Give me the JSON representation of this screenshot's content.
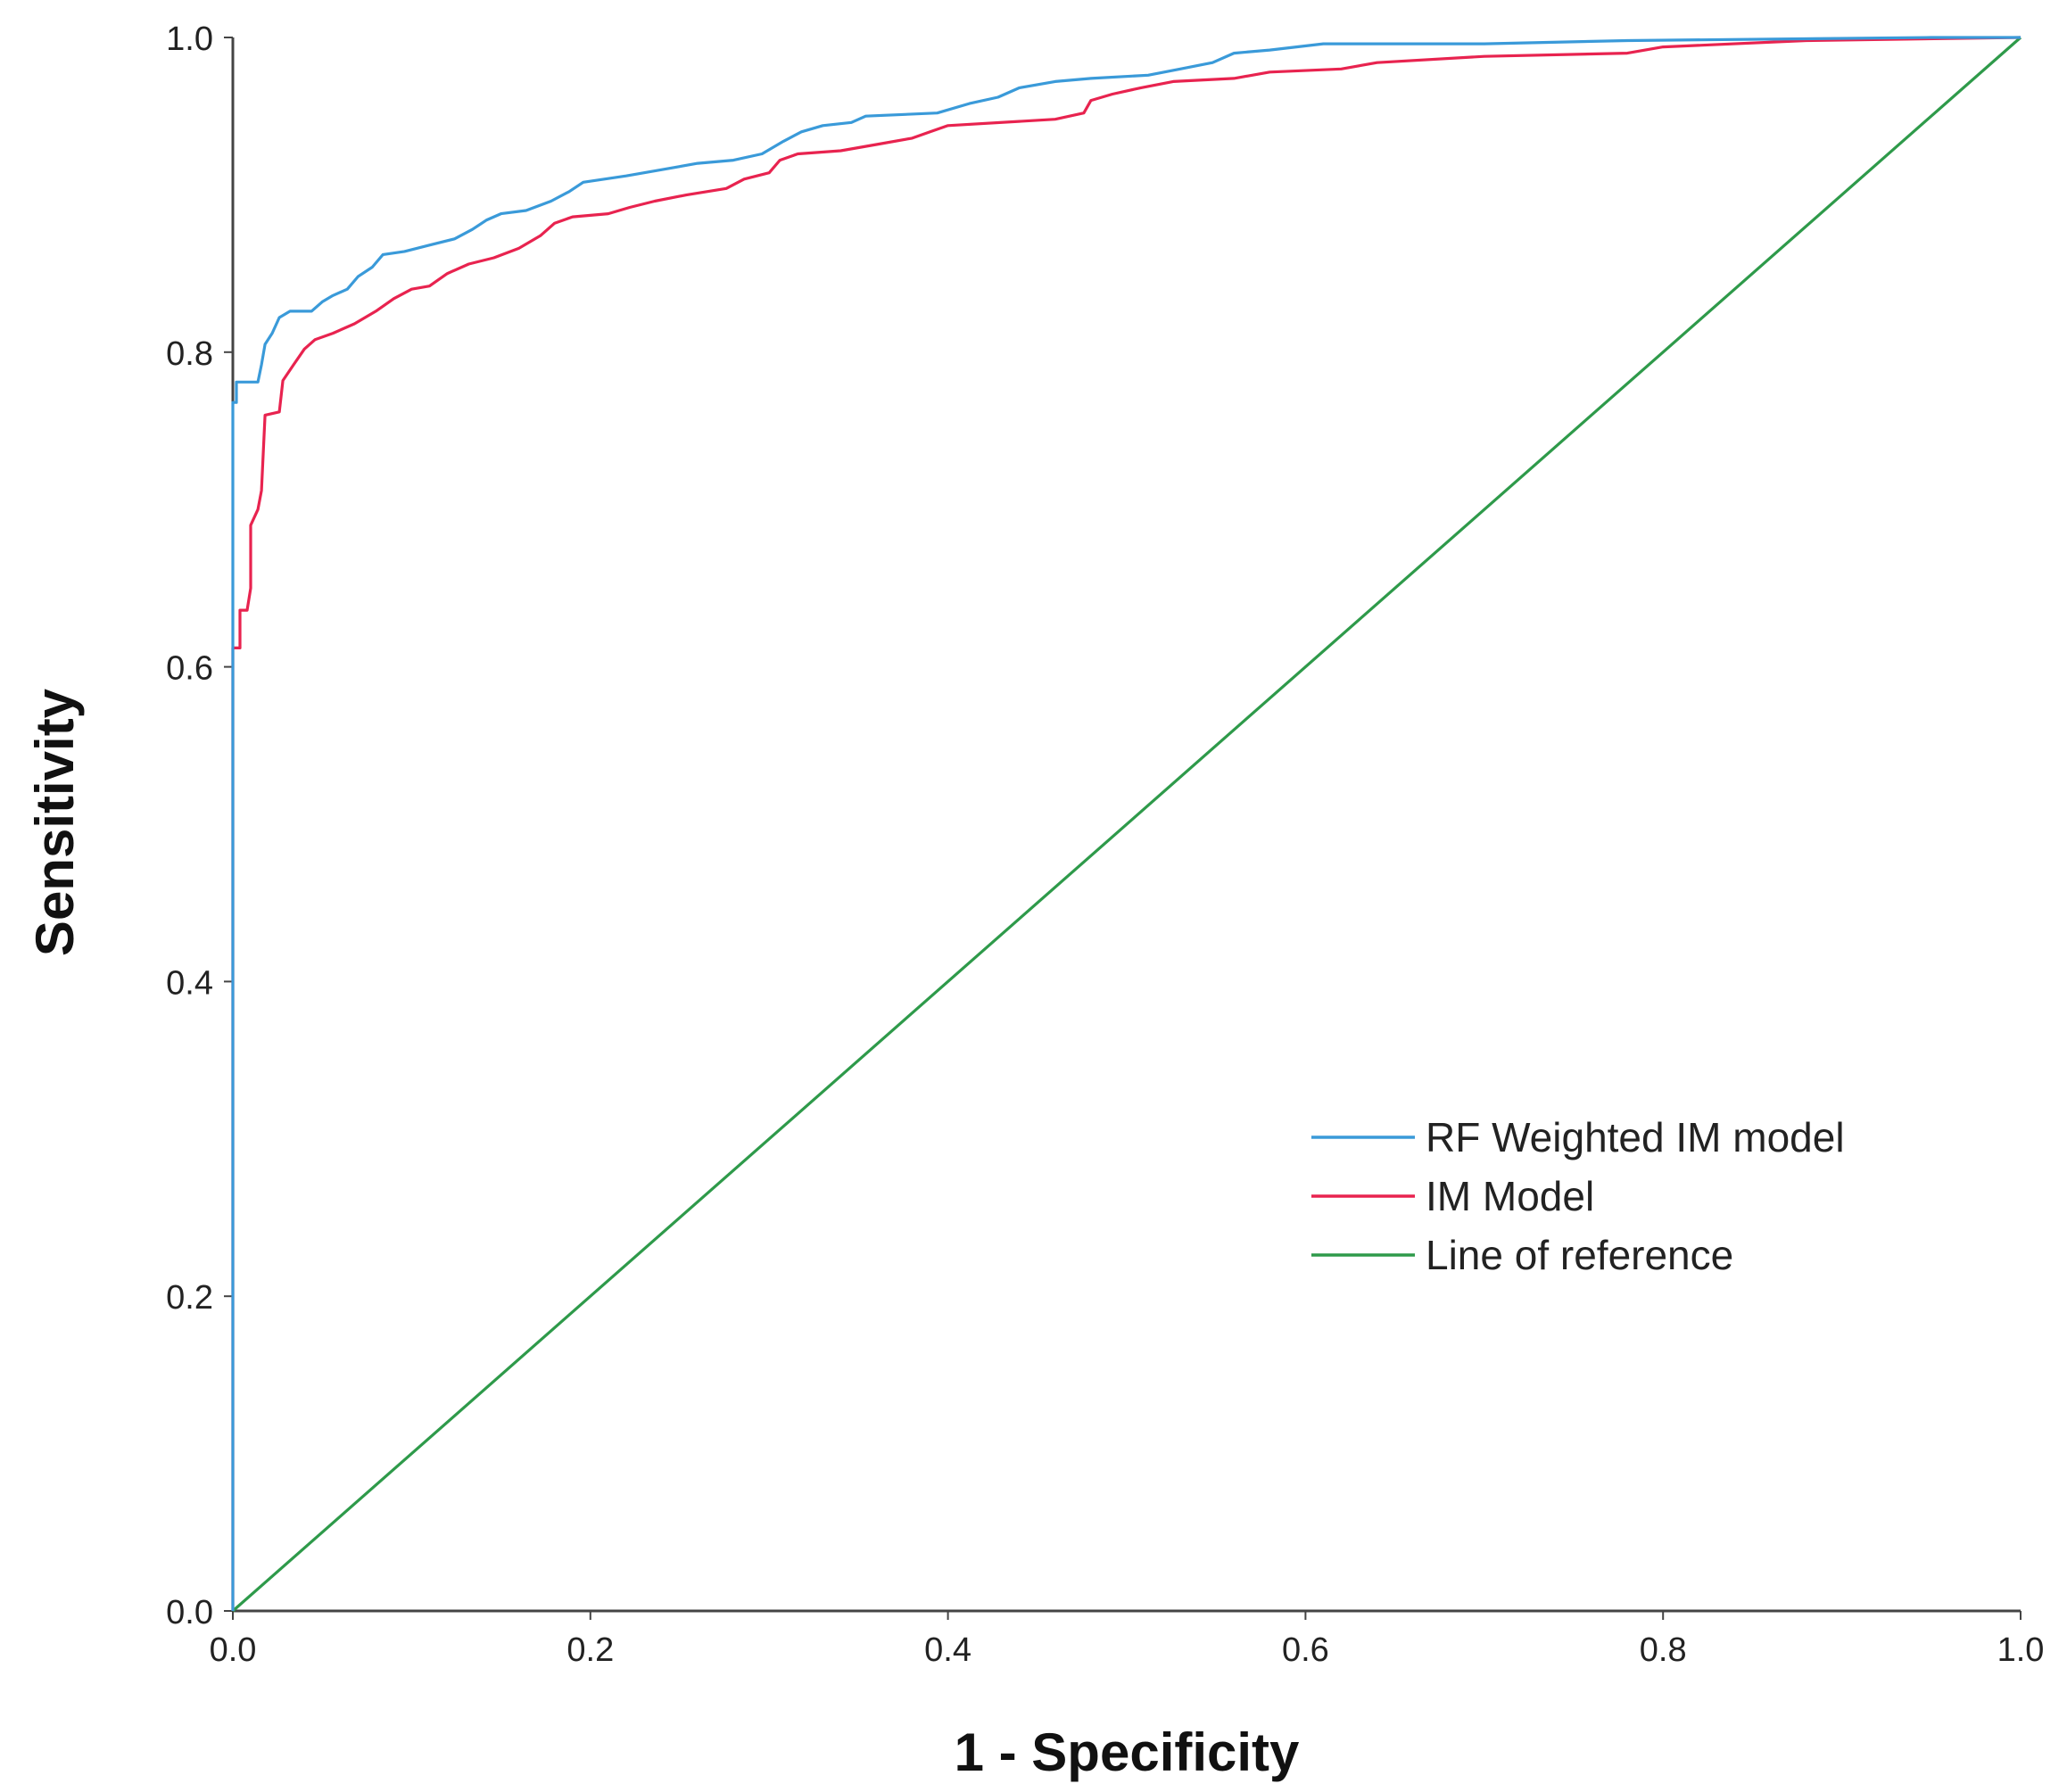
{
  "chart_data": {
    "type": "line",
    "title": "",
    "xlabel": "1 - Specificity",
    "ylabel": "Sensitivity",
    "xlim": [
      0,
      1
    ],
    "ylim": [
      0,
      1
    ],
    "xticks": [
      "0.0",
      "0.2",
      "0.4",
      "0.6",
      "0.8",
      "1.0"
    ],
    "yticks": [
      "0.0",
      "0.2",
      "0.4",
      "0.6",
      "0.8",
      "1.0"
    ],
    "grid": false,
    "legend_position": "center-right",
    "series": [
      {
        "name": "RF Weighted IM model",
        "color": "#3a9ad9",
        "points": [
          [
            0,
            0
          ],
          [
            0,
            0.768
          ],
          [
            0.002,
            0.768
          ],
          [
            0.002,
            0.781
          ],
          [
            0.014,
            0.781
          ],
          [
            0.016,
            0.792
          ],
          [
            0.018,
            0.805
          ],
          [
            0.022,
            0.812
          ],
          [
            0.026,
            0.822
          ],
          [
            0.032,
            0.826
          ],
          [
            0.044,
            0.826
          ],
          [
            0.05,
            0.832
          ],
          [
            0.056,
            0.836
          ],
          [
            0.064,
            0.84
          ],
          [
            0.07,
            0.848
          ],
          [
            0.078,
            0.854
          ],
          [
            0.084,
            0.862
          ],
          [
            0.096,
            0.864
          ],
          [
            0.11,
            0.868
          ],
          [
            0.124,
            0.872
          ],
          [
            0.134,
            0.878
          ],
          [
            0.142,
            0.884
          ],
          [
            0.15,
            0.888
          ],
          [
            0.164,
            0.89
          ],
          [
            0.178,
            0.896
          ],
          [
            0.188,
            0.902
          ],
          [
            0.196,
            0.908
          ],
          [
            0.22,
            0.912
          ],
          [
            0.24,
            0.916
          ],
          [
            0.26,
            0.92
          ],
          [
            0.28,
            0.922
          ],
          [
            0.296,
            0.926
          ],
          [
            0.308,
            0.934
          ],
          [
            0.318,
            0.94
          ],
          [
            0.33,
            0.944
          ],
          [
            0.346,
            0.946
          ],
          [
            0.354,
            0.95
          ],
          [
            0.394,
            0.952
          ],
          [
            0.412,
            0.958
          ],
          [
            0.428,
            0.962
          ],
          [
            0.44,
            0.968
          ],
          [
            0.46,
            0.972
          ],
          [
            0.48,
            0.974
          ],
          [
            0.512,
            0.976
          ],
          [
            0.53,
            0.98
          ],
          [
            0.548,
            0.984
          ],
          [
            0.56,
            0.99
          ],
          [
            0.58,
            0.992
          ],
          [
            0.61,
            0.996
          ],
          [
            0.7,
            0.996
          ],
          [
            0.78,
            0.998
          ],
          [
            0.95,
            1.0
          ],
          [
            1.0,
            1.0
          ]
        ]
      },
      {
        "name": "IM Model",
        "color": "#e8234f",
        "points": [
          [
            0,
            0
          ],
          [
            0,
            0.612
          ],
          [
            0.004,
            0.612
          ],
          [
            0.004,
            0.636
          ],
          [
            0.008,
            0.636
          ],
          [
            0.01,
            0.65
          ],
          [
            0.01,
            0.69
          ],
          [
            0.014,
            0.7
          ],
          [
            0.016,
            0.712
          ],
          [
            0.018,
            0.76
          ],
          [
            0.026,
            0.762
          ],
          [
            0.028,
            0.782
          ],
          [
            0.034,
            0.792
          ],
          [
            0.04,
            0.802
          ],
          [
            0.046,
            0.808
          ],
          [
            0.056,
            0.812
          ],
          [
            0.068,
            0.818
          ],
          [
            0.08,
            0.826
          ],
          [
            0.09,
            0.834
          ],
          [
            0.1,
            0.84
          ],
          [
            0.11,
            0.842
          ],
          [
            0.12,
            0.85
          ],
          [
            0.132,
            0.856
          ],
          [
            0.146,
            0.86
          ],
          [
            0.16,
            0.866
          ],
          [
            0.172,
            0.874
          ],
          [
            0.18,
            0.882
          ],
          [
            0.19,
            0.886
          ],
          [
            0.21,
            0.888
          ],
          [
            0.222,
            0.892
          ],
          [
            0.236,
            0.896
          ],
          [
            0.254,
            0.9
          ],
          [
            0.276,
            0.904
          ],
          [
            0.286,
            0.91
          ],
          [
            0.3,
            0.914
          ],
          [
            0.306,
            0.922
          ],
          [
            0.316,
            0.926
          ],
          [
            0.34,
            0.928
          ],
          [
            0.36,
            0.932
          ],
          [
            0.38,
            0.936
          ],
          [
            0.39,
            0.94
          ],
          [
            0.4,
            0.944
          ],
          [
            0.46,
            0.948
          ],
          [
            0.476,
            0.952
          ],
          [
            0.48,
            0.96
          ],
          [
            0.492,
            0.964
          ],
          [
            0.508,
            0.968
          ],
          [
            0.526,
            0.972
          ],
          [
            0.56,
            0.974
          ],
          [
            0.58,
            0.978
          ],
          [
            0.62,
            0.98
          ],
          [
            0.64,
            0.984
          ],
          [
            0.7,
            0.988
          ],
          [
            0.78,
            0.99
          ],
          [
            0.8,
            0.994
          ],
          [
            0.88,
            0.998
          ],
          [
            1.0,
            1.0
          ]
        ]
      },
      {
        "name": "Line of reference",
        "color": "#2e9a4a",
        "points": [
          [
            0,
            0
          ],
          [
            1,
            1
          ]
        ]
      }
    ]
  }
}
